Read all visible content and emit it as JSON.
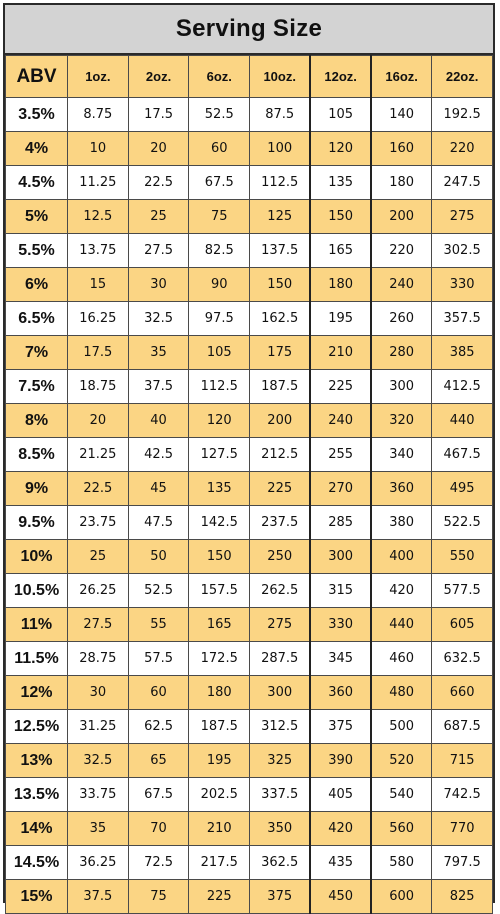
{
  "title": "Serving Size",
  "columns": [
    "ABV",
    "1oz.",
    "2oz.",
    "6oz.",
    "10oz.",
    "12oz.",
    "16oz.",
    "22oz."
  ],
  "rows": [
    [
      "3.5%",
      "8.75",
      "17.5",
      "52.5",
      "87.5",
      "105",
      "140",
      "192.5"
    ],
    [
      "4%",
      "10",
      "20",
      "60",
      "100",
      "120",
      "160",
      "220"
    ],
    [
      "4.5%",
      "11.25",
      "22.5",
      "67.5",
      "112.5",
      "135",
      "180",
      "247.5"
    ],
    [
      "5%",
      "12.5",
      "25",
      "75",
      "125",
      "150",
      "200",
      "275"
    ],
    [
      "5.5%",
      "13.75",
      "27.5",
      "82.5",
      "137.5",
      "165",
      "220",
      "302.5"
    ],
    [
      "6%",
      "15",
      "30",
      "90",
      "150",
      "180",
      "240",
      "330"
    ],
    [
      "6.5%",
      "16.25",
      "32.5",
      "97.5",
      "162.5",
      "195",
      "260",
      "357.5"
    ],
    [
      "7%",
      "17.5",
      "35",
      "105",
      "175",
      "210",
      "280",
      "385"
    ],
    [
      "7.5%",
      "18.75",
      "37.5",
      "112.5",
      "187.5",
      "225",
      "300",
      "412.5"
    ],
    [
      "8%",
      "20",
      "40",
      "120",
      "200",
      "240",
      "320",
      "440"
    ],
    [
      "8.5%",
      "21.25",
      "42.5",
      "127.5",
      "212.5",
      "255",
      "340",
      "467.5"
    ],
    [
      "9%",
      "22.5",
      "45",
      "135",
      "225",
      "270",
      "360",
      "495"
    ],
    [
      "9.5%",
      "23.75",
      "47.5",
      "142.5",
      "237.5",
      "285",
      "380",
      "522.5"
    ],
    [
      "10%",
      "25",
      "50",
      "150",
      "250",
      "300",
      "400",
      "550"
    ],
    [
      "10.5%",
      "26.25",
      "52.5",
      "157.5",
      "262.5",
      "315",
      "420",
      "577.5"
    ],
    [
      "11%",
      "27.5",
      "55",
      "165",
      "275",
      "330",
      "440",
      "605"
    ],
    [
      "11.5%",
      "28.75",
      "57.5",
      "172.5",
      "287.5",
      "345",
      "460",
      "632.5"
    ],
    [
      "12%",
      "30",
      "60",
      "180",
      "300",
      "360",
      "480",
      "660"
    ],
    [
      "12.5%",
      "31.25",
      "62.5",
      "187.5",
      "312.5",
      "375",
      "500",
      "687.5"
    ],
    [
      "13%",
      "32.5",
      "65",
      "195",
      "325",
      "390",
      "520",
      "715"
    ],
    [
      "13.5%",
      "33.75",
      "67.5",
      "202.5",
      "337.5",
      "405",
      "540",
      "742.5"
    ],
    [
      "14%",
      "35",
      "70",
      "210",
      "350",
      "420",
      "560",
      "770"
    ],
    [
      "14.5%",
      "36.25",
      "72.5",
      "217.5",
      "362.5",
      "435",
      "580",
      "797.5"
    ],
    [
      "15%",
      "37.5",
      "75",
      "225",
      "375",
      "450",
      "600",
      "825"
    ]
  ],
  "colors": {
    "header_fill": "#fbd584",
    "stripe_fill": "#fbd584",
    "title_fill": "#d3d3d3"
  }
}
